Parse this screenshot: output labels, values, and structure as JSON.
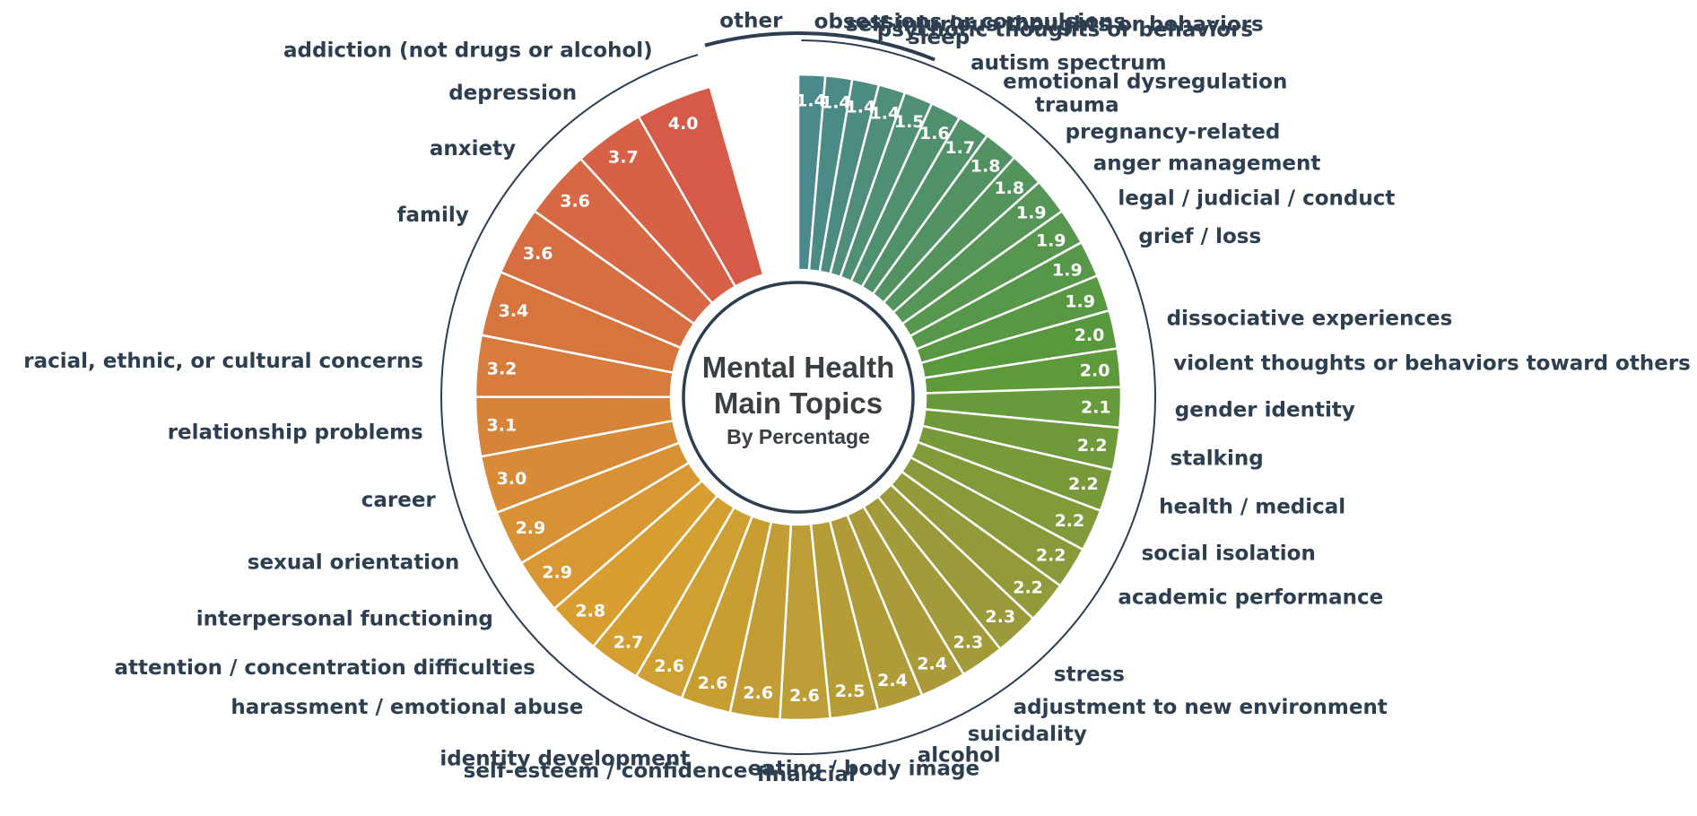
{
  "chart_data": {
    "type": "pie",
    "style": "donut",
    "title_lines": [
      "Mental Health",
      "Main Topics"
    ],
    "subtitle": "By Percentage",
    "colors": {
      "gradient_start": "#4a8a8c",
      "gradient_green": "#5a9a3a",
      "gradient_olive": "#a89a3a",
      "gradient_gold": "#d8a030",
      "gradient_end": "#d65a48",
      "outline": "#2c3e50",
      "label": "#2c3e50"
    },
    "slices": [
      {
        "label": "other",
        "value": null,
        "value_label": ""
      },
      {
        "label": "obsessions or compulsions",
        "value": 1.4,
        "value_label": "1.4"
      },
      {
        "label": "self-injurious thoughts or behaviors",
        "value": 1.4,
        "value_label": "1.4"
      },
      {
        "label": "psychotic thoughts or behaviors",
        "value": 1.4,
        "value_label": "1.4"
      },
      {
        "label": "sleep",
        "value": 1.4,
        "value_label": "1.4"
      },
      {
        "label": "autism spectrum",
        "value": 1.5,
        "value_label": "1.5"
      },
      {
        "label": "emotional dysregulation",
        "value": 1.6,
        "value_label": "1.6"
      },
      {
        "label": "trauma",
        "value": 1.7,
        "value_label": "1.7"
      },
      {
        "label": "pregnancy-related",
        "value": 1.8,
        "value_label": "1.8"
      },
      {
        "label": "anger management",
        "value": 1.8,
        "value_label": "1.8"
      },
      {
        "label": "legal / judicial / conduct",
        "value": 1.9,
        "value_label": "1.9"
      },
      {
        "label": "grief / loss",
        "value": 1.9,
        "value_label": "1.9"
      },
      {
        "label": "dissociative experiences",
        "value": 1.9,
        "value_label": "1.9"
      },
      {
        "label": "violent thoughts or behaviors toward others",
        "value": 1.9,
        "value_label": "1.9"
      },
      {
        "label": "gender identity",
        "value": 2.0,
        "value_label": "2.0"
      },
      {
        "label": "stalking",
        "value": 2.0,
        "value_label": "2.0"
      },
      {
        "label": "health / medical",
        "value": 2.1,
        "value_label": "2.1"
      },
      {
        "label": "social isolation",
        "value": 2.2,
        "value_label": "2.2"
      },
      {
        "label": "academic performance",
        "value": 2.2,
        "value_label": "2.2"
      },
      {
        "label": "stress",
        "value": 2.2,
        "value_label": "2.2"
      },
      {
        "label": "adjustment to new environment",
        "value": 2.2,
        "value_label": "2.2"
      },
      {
        "label": "suicidality",
        "value": 2.2,
        "value_label": "2.2"
      },
      {
        "label": "alcohol",
        "value": 2.3,
        "value_label": "2.3"
      },
      {
        "label": "eating / body image",
        "value": 2.3,
        "value_label": "2.3"
      },
      {
        "label": "financial",
        "value": 2.4,
        "value_label": "2.4"
      },
      {
        "label": "self-esteem / confidence",
        "value": 2.4,
        "value_label": "2.4"
      },
      {
        "label": "identity development",
        "value": 2.5,
        "value_label": "2.5"
      },
      {
        "label": "harassment / emotional abuse",
        "value": 2.6,
        "value_label": "2.6"
      },
      {
        "label": "attention / concentration difficulties",
        "value": 2.6,
        "value_label": "2.6"
      },
      {
        "label": "interpersonal functioning",
        "value": 2.6,
        "value_label": "2.6"
      },
      {
        "label": "sexual orientation",
        "value": 2.6,
        "value_label": "2.6"
      },
      {
        "label": "career",
        "value": 2.7,
        "value_label": "2.7"
      },
      {
        "label": "relationship problems",
        "value": 2.8,
        "value_label": "2.8"
      },
      {
        "label": "racial, ethnic, or cultural concerns",
        "value": 2.9,
        "value_label": "2.9"
      },
      {
        "label": "family",
        "value": 2.9,
        "value_label": "2.9"
      },
      {
        "label": "anxiety",
        "value": 3.0,
        "value_label": "3.0"
      },
      {
        "label": "depression",
        "value": 3.1,
        "value_label": "3.1"
      },
      {
        "label": "addiction (not drugs or alcohol)",
        "value": 3.2,
        "value_label": "3.2"
      },
      {
        "label": "",
        "value": 3.4,
        "value_label": "3.4"
      },
      {
        "label": "",
        "value": 3.6,
        "value_label": "3.6"
      },
      {
        "label": "",
        "value": 3.6,
        "value_label": "3.6"
      },
      {
        "label": "",
        "value": 3.7,
        "value_label": "3.7"
      },
      {
        "label": "",
        "value": 4.0,
        "value_label": "4.0"
      }
    ],
    "bar_values_clockwise": [
      1.4,
      1.4,
      1.4,
      1.4,
      1.5,
      1.6,
      1.7,
      1.8,
      1.8,
      1.9,
      1.9,
      1.9,
      1.9,
      2.0,
      2.0,
      2.1,
      2.2,
      2.2,
      2.2,
      2.2,
      2.2,
      2.3,
      2.3,
      2.4,
      2.4,
      2.5,
      2.6,
      2.6,
      2.6,
      2.6,
      2.7,
      2.8,
      2.9,
      2.9,
      3.0,
      3.1,
      3.2,
      3.4,
      3.6,
      3.6,
      3.7,
      4.0
    ],
    "outer_labels_clockwise": [
      "obsessions or compulsions",
      "self-injurious thoughts or behaviors",
      "psychotic thoughts or behaviors",
      "sleep",
      "autism spectrum",
      "emotional dysregulation",
      "trauma",
      "pregnancy-related",
      "anger management",
      "legal / judicial / conduct",
      "grief / loss",
      "dissociative experiences",
      "violent thoughts or behaviors toward others",
      "gender identity",
      "stalking",
      "health / medical",
      "social isolation",
      "academic performance",
      "stress",
      "adjustment to new environment",
      "suicidality",
      "alcohol",
      "eating / body image",
      "financial",
      "self-esteem / confidence",
      "identity development",
      "harassment / emotional abuse",
      "attention / concentration difficulties",
      "interpersonal functioning",
      "sexual orientation",
      "career",
      "relationship problems",
      "racial, ethnic, or cultural concerns",
      "family",
      "anxiety",
      "depression",
      "addiction (not drugs or alcohol)"
    ],
    "other_label": "other"
  }
}
